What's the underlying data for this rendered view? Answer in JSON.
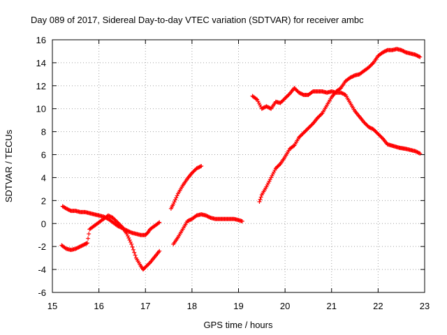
{
  "chart_data": {
    "type": "scatter",
    "title": "Day 089 of 2017, Sidereal Day-to-day VTEC variation (SDTVAR) for receiver ambc",
    "xlabel": "GPS time / hours",
    "ylabel": "SDTVAR / TECUs",
    "xlim": [
      15,
      23
    ],
    "ylim": [
      -6,
      16
    ],
    "xticks": [
      "15",
      "16",
      "17",
      "18",
      "19",
      "20",
      "21",
      "22",
      "23"
    ],
    "yticks": [
      "-6",
      "-4",
      "-2",
      "0",
      "2",
      "4",
      "6",
      "8",
      "10",
      "12",
      "14",
      "16"
    ],
    "grid": true,
    "marker": "plus",
    "color": "#ff0000",
    "series": [
      {
        "points": [
          [
            15.22,
            1.5
          ],
          [
            15.3,
            1.3
          ],
          [
            15.4,
            1.1
          ],
          [
            15.5,
            1.1
          ],
          [
            15.6,
            1.0
          ],
          [
            15.7,
            1.0
          ],
          [
            15.8,
            0.9
          ],
          [
            15.9,
            0.8
          ],
          [
            16.0,
            0.7
          ],
          [
            16.1,
            0.6
          ],
          [
            16.2,
            0.4
          ],
          [
            16.3,
            0.1
          ],
          [
            16.4,
            -0.2
          ],
          [
            16.5,
            -0.4
          ],
          [
            16.6,
            -0.6
          ],
          [
            16.7,
            -0.8
          ],
          [
            16.8,
            -0.9
          ],
          [
            16.9,
            -1.0
          ],
          [
            17.0,
            -1.0
          ],
          [
            17.05,
            -0.8
          ],
          [
            17.1,
            -0.5
          ],
          [
            17.2,
            -0.2
          ],
          [
            17.3,
            0.1
          ]
        ]
      },
      {
        "points": [
          [
            15.2,
            -1.9
          ],
          [
            15.3,
            -2.2
          ],
          [
            15.4,
            -2.3
          ],
          [
            15.5,
            -2.2
          ],
          [
            15.6,
            -2.0
          ],
          [
            15.7,
            -1.8
          ],
          [
            15.75,
            -1.7
          ],
          [
            15.8,
            -0.5
          ],
          [
            15.9,
            -0.2
          ],
          [
            16.0,
            0.1
          ],
          [
            16.1,
            0.4
          ],
          [
            16.2,
            0.7
          ],
          [
            16.3,
            0.5
          ],
          [
            16.4,
            0.1
          ],
          [
            16.5,
            -0.3
          ],
          [
            16.6,
            -0.9
          ],
          [
            16.7,
            -1.8
          ],
          [
            16.8,
            -3.0
          ],
          [
            16.9,
            -3.7
          ],
          [
            16.95,
            -4.0
          ],
          [
            17.0,
            -3.8
          ],
          [
            17.1,
            -3.4
          ],
          [
            17.2,
            -2.9
          ],
          [
            17.3,
            -2.4
          ]
        ]
      },
      {
        "points": [
          [
            17.55,
            1.3
          ],
          [
            17.6,
            1.7
          ],
          [
            17.7,
            2.6
          ],
          [
            17.8,
            3.3
          ],
          [
            17.9,
            3.9
          ],
          [
            18.0,
            4.4
          ],
          [
            18.1,
            4.8
          ],
          [
            18.2,
            5.0
          ]
        ]
      },
      {
        "points": [
          [
            17.6,
            -1.8
          ],
          [
            17.7,
            -1.2
          ],
          [
            17.8,
            -0.5
          ],
          [
            17.9,
            0.2
          ],
          [
            18.0,
            0.4
          ],
          [
            18.1,
            0.7
          ],
          [
            18.2,
            0.8
          ],
          [
            18.3,
            0.7
          ],
          [
            18.4,
            0.5
          ],
          [
            18.5,
            0.4
          ],
          [
            18.6,
            0.4
          ],
          [
            18.7,
            0.4
          ],
          [
            18.8,
            0.4
          ],
          [
            18.9,
            0.4
          ],
          [
            19.0,
            0.3
          ],
          [
            19.08,
            0.2
          ]
        ]
      },
      {
        "points": [
          [
            19.3,
            11.1
          ],
          [
            19.4,
            10.8
          ],
          [
            19.5,
            10.0
          ],
          [
            19.6,
            10.2
          ],
          [
            19.7,
            10.0
          ],
          [
            19.8,
            10.6
          ],
          [
            19.9,
            10.5
          ],
          [
            20.0,
            10.9
          ],
          [
            20.1,
            11.3
          ],
          [
            20.2,
            11.8
          ],
          [
            20.3,
            11.4
          ],
          [
            20.4,
            11.2
          ],
          [
            20.5,
            11.2
          ],
          [
            20.6,
            11.5
          ],
          [
            20.7,
            11.5
          ],
          [
            20.8,
            11.5
          ],
          [
            20.9,
            11.4
          ],
          [
            21.0,
            11.5
          ],
          [
            21.1,
            11.4
          ],
          [
            21.2,
            11.4
          ],
          [
            21.3,
            11.2
          ],
          [
            21.4,
            10.5
          ],
          [
            21.5,
            9.8
          ],
          [
            21.6,
            9.3
          ],
          [
            21.7,
            8.8
          ],
          [
            21.8,
            8.4
          ],
          [
            21.9,
            8.2
          ],
          [
            22.0,
            7.8
          ],
          [
            22.1,
            7.4
          ],
          [
            22.2,
            6.9
          ],
          [
            22.45,
            6.6
          ],
          [
            22.6,
            6.5
          ],
          [
            22.7,
            6.4
          ],
          [
            22.8,
            6.3
          ],
          [
            22.9,
            6.1
          ]
        ]
      },
      {
        "points": [
          [
            19.45,
            1.9
          ],
          [
            19.5,
            2.5
          ],
          [
            19.6,
            3.2
          ],
          [
            19.7,
            4.0
          ],
          [
            19.8,
            4.8
          ],
          [
            19.9,
            5.2
          ],
          [
            20.0,
            5.8
          ],
          [
            20.1,
            6.5
          ],
          [
            20.2,
            6.8
          ],
          [
            20.3,
            7.5
          ],
          [
            20.4,
            7.9
          ],
          [
            20.5,
            8.3
          ],
          [
            20.6,
            8.7
          ],
          [
            20.7,
            9.2
          ],
          [
            20.8,
            9.6
          ],
          [
            20.9,
            10.3
          ],
          [
            21.0,
            11.0
          ],
          [
            21.1,
            11.5
          ],
          [
            21.2,
            11.8
          ],
          [
            21.3,
            12.4
          ],
          [
            21.4,
            12.7
          ],
          [
            21.5,
            12.9
          ],
          [
            21.6,
            13.0
          ],
          [
            21.7,
            13.3
          ],
          [
            21.8,
            13.6
          ],
          [
            21.9,
            14.0
          ],
          [
            22.0,
            14.6
          ],
          [
            22.1,
            14.9
          ],
          [
            22.2,
            15.1
          ],
          [
            22.3,
            15.1
          ],
          [
            22.4,
            15.2
          ],
          [
            22.5,
            15.1
          ],
          [
            22.6,
            14.9
          ],
          [
            22.7,
            14.8
          ],
          [
            22.8,
            14.7
          ],
          [
            22.9,
            14.5
          ]
        ]
      }
    ]
  }
}
